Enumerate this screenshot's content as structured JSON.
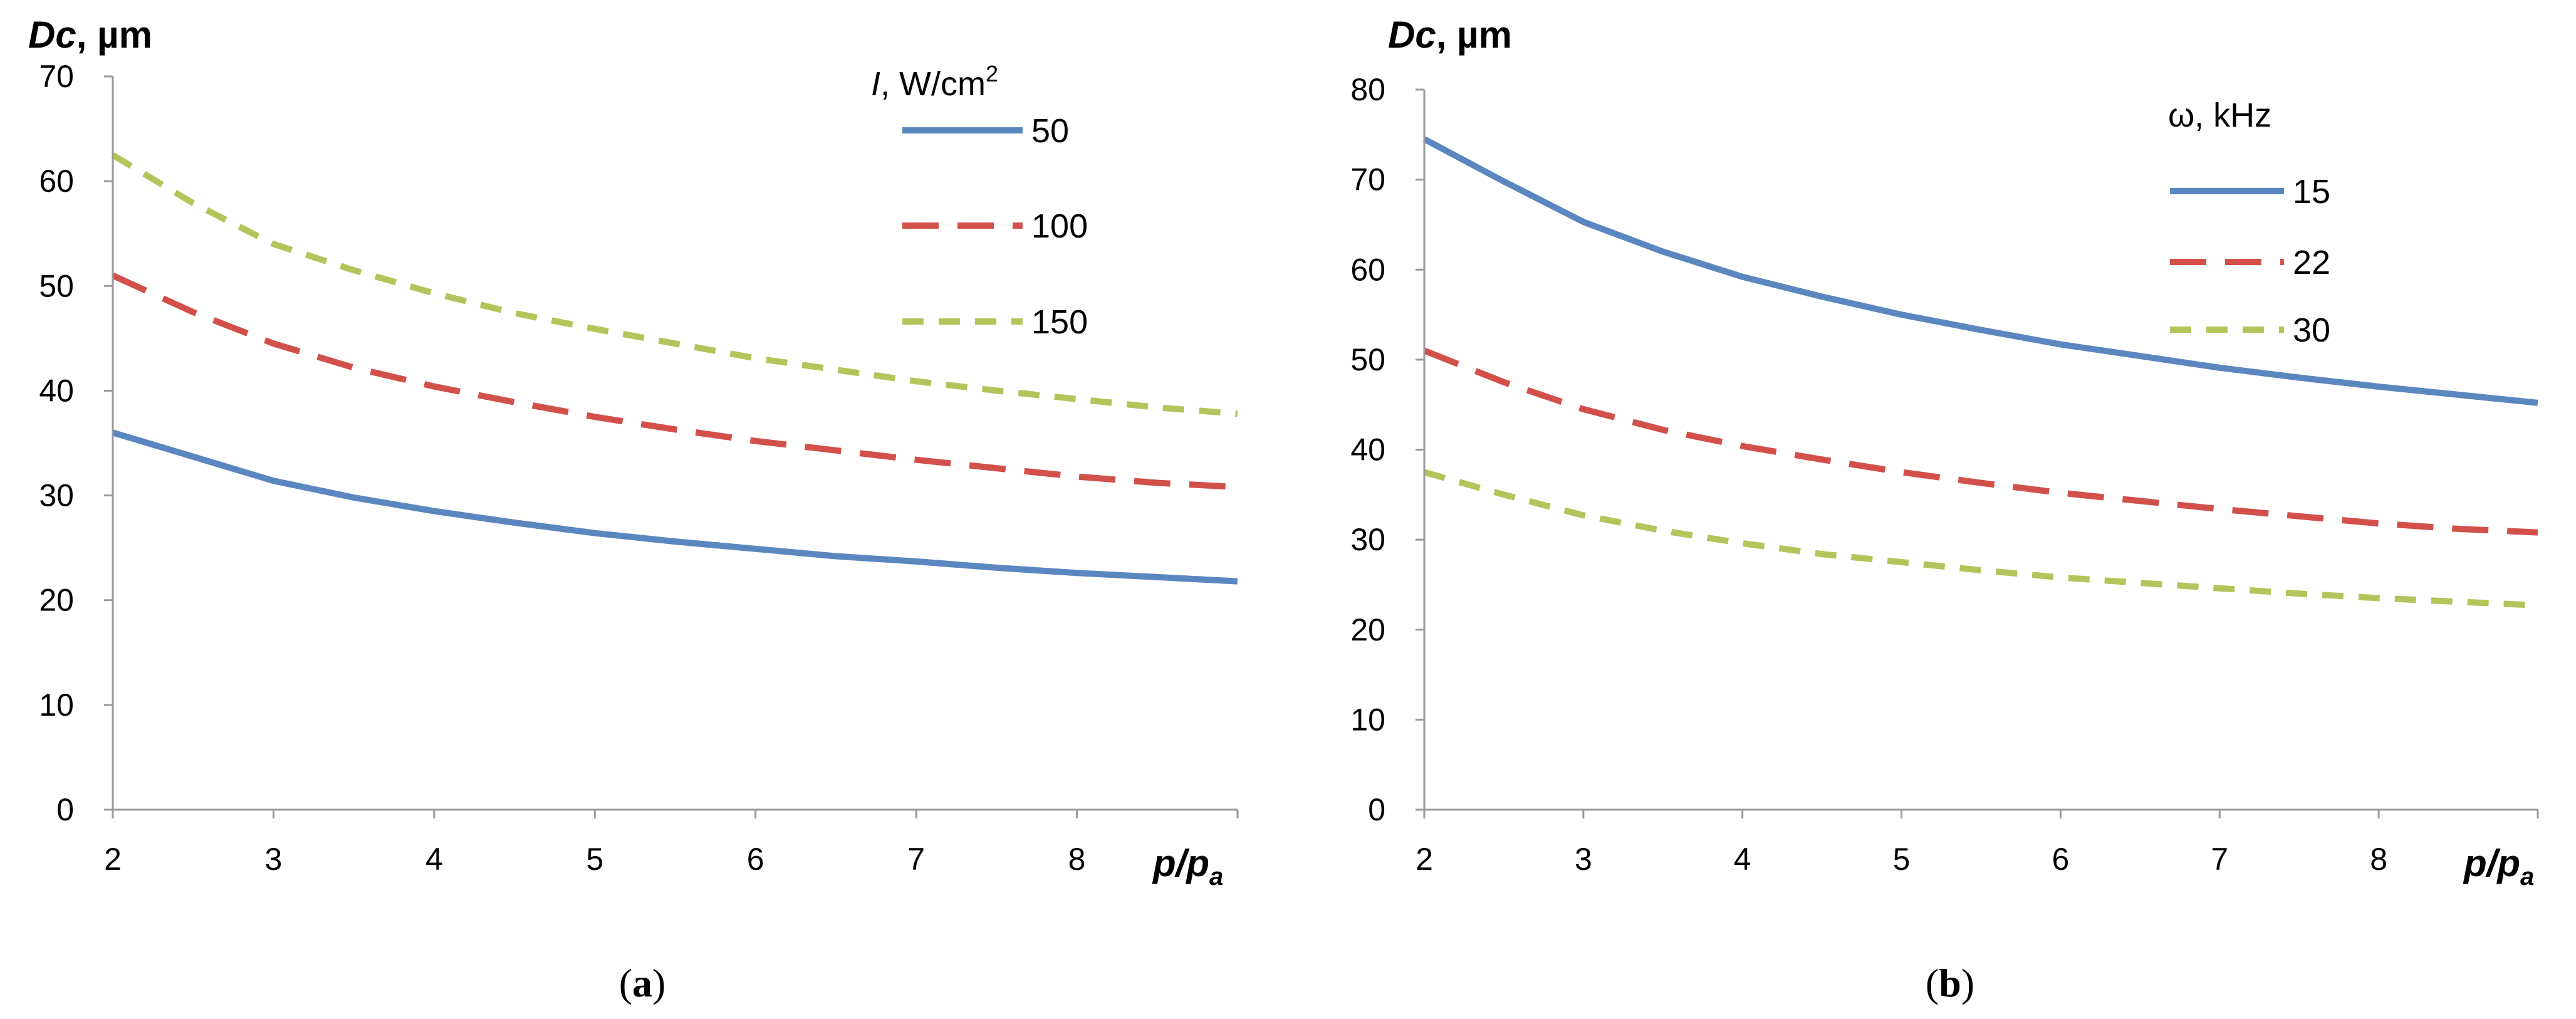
{
  "chart_data": [
    {
      "type": "line",
      "panel_label": "a",
      "ylabel": "Dc, µm",
      "ylabel_main": "Dc",
      "ylabel_unit": ", µm",
      "xlabel": "p/pa",
      "xlabel_main": "p/p",
      "xlabel_sub": "a",
      "ylim": [
        0,
        70
      ],
      "yticks": [
        0,
        10,
        20,
        30,
        40,
        50,
        60,
        70
      ],
      "xlim": [
        2,
        9
      ],
      "xticks": [
        2,
        3,
        4,
        5,
        6,
        7,
        8
      ],
      "grid": false,
      "legend_title": "I, W/cm2",
      "legend_title_var": "I",
      "legend_title_unit": ", W/cm",
      "legend_title_sup": "2",
      "legend_position": "top-right",
      "x": [
        2,
        2.5,
        3,
        3.5,
        4,
        4.5,
        5,
        5.5,
        6,
        6.5,
        7,
        7.5,
        8,
        8.5,
        9
      ],
      "series": [
        {
          "name": "50",
          "color": "#5B87C0",
          "dash": "solid",
          "values": [
            36.0,
            33.7,
            31.4,
            29.8,
            28.5,
            27.4,
            26.4,
            25.6,
            24.9,
            24.2,
            23.7,
            23.1,
            22.6,
            22.2,
            21.8
          ]
        },
        {
          "name": "100",
          "color": "#D3504A",
          "dash": "long",
          "values": [
            51.0,
            47.5,
            44.5,
            42.2,
            40.4,
            38.9,
            37.5,
            36.3,
            35.2,
            34.3,
            33.4,
            32.6,
            31.8,
            31.2,
            30.8
          ]
        },
        {
          "name": "150",
          "color": "#B5C45A",
          "dash": "short",
          "values": [
            62.5,
            57.9,
            54.0,
            51.5,
            49.3,
            47.4,
            45.9,
            44.5,
            43.1,
            42.0,
            40.9,
            40.0,
            39.2,
            38.4,
            37.8
          ]
        }
      ]
    },
    {
      "type": "line",
      "panel_label": "b",
      "ylabel": "Dc, µm",
      "ylabel_main": "Dc",
      "ylabel_unit": ", µm",
      "xlabel": "p/pa",
      "xlabel_main": "p/p",
      "xlabel_sub": "a",
      "ylim": [
        0,
        80
      ],
      "yticks": [
        0,
        10,
        20,
        30,
        40,
        50,
        60,
        70,
        80
      ],
      "xlim": [
        2,
        9
      ],
      "xticks": [
        2,
        3,
        4,
        5,
        6,
        7,
        8
      ],
      "grid": false,
      "legend_title": "ω, kHz",
      "legend_position": "top-right",
      "x": [
        2,
        2.5,
        3,
        3.5,
        4,
        4.5,
        5,
        5.5,
        6,
        6.5,
        7,
        7.5,
        8,
        8.5,
        9
      ],
      "series": [
        {
          "name": "15",
          "color": "#5B87C0",
          "dash": "solid",
          "values": [
            74.5,
            69.8,
            65.3,
            62.0,
            59.2,
            57.0,
            55.0,
            53.3,
            51.7,
            50.4,
            49.1,
            48.0,
            47.0,
            46.1,
            45.2
          ]
        },
        {
          "name": "22",
          "color": "#D3504A",
          "dash": "long",
          "values": [
            51.0,
            47.5,
            44.5,
            42.2,
            40.4,
            38.9,
            37.5,
            36.3,
            35.2,
            34.3,
            33.4,
            32.6,
            31.8,
            31.2,
            30.8
          ]
        },
        {
          "name": "30",
          "color": "#B5C45A",
          "dash": "short",
          "values": [
            37.5,
            35.0,
            32.7,
            31.0,
            29.6,
            28.4,
            27.5,
            26.6,
            25.8,
            25.2,
            24.6,
            24.0,
            23.5,
            23.1,
            22.7
          ]
        }
      ]
    }
  ]
}
